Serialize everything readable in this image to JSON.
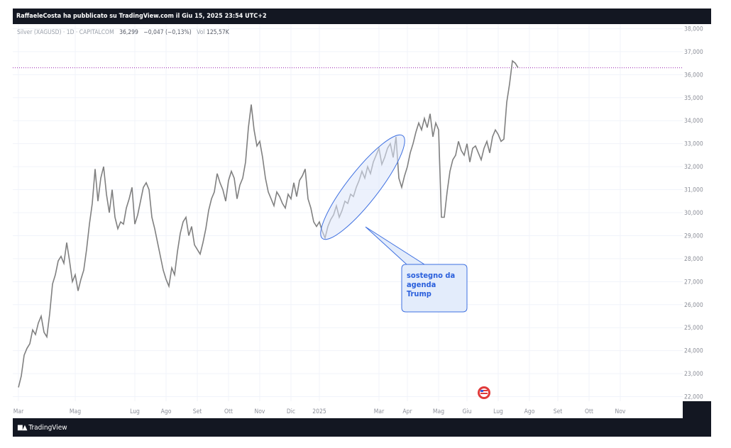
{
  "header": {
    "publish_line": "RaffaeleCosta ha pubblicato su TradingView.com il Giu 15, 2025 23:54 UTC+2"
  },
  "footer": {
    "brand": "TradingView"
  },
  "legend": {
    "symbol": "Silver (XAGUSD) · 1D · CAPITALCOM",
    "close": "36,299",
    "change": "−0,047 (−0,13%)",
    "volume_label": "Vol",
    "volume": "125,57K"
  },
  "annotation": {
    "text_lines": [
      "sostegno da",
      "agenda",
      "Trump"
    ]
  },
  "colors": {
    "line": "#808080",
    "price_line": "#9c27b0",
    "callout_fill": "#e3ecfb",
    "callout_border": "#3d6fe0",
    "callout_text": "#2a5fdc"
  },
  "chart_data": {
    "type": "line",
    "title": "",
    "xlabel": "",
    "ylabel": "",
    "ylim": [
      21.8,
      38.2
    ],
    "current_price": 36.299,
    "y_ticks": [
      {
        "v": 22,
        "label": "22,000"
      },
      {
        "v": 23,
        "label": "23,000"
      },
      {
        "v": 24,
        "label": "24,000"
      },
      {
        "v": 25,
        "label": "25,000"
      },
      {
        "v": 26,
        "label": "26,000"
      },
      {
        "v": 27,
        "label": "27,000"
      },
      {
        "v": 28,
        "label": "28,000"
      },
      {
        "v": 29,
        "label": "29,000"
      },
      {
        "v": 30,
        "label": "30,000"
      },
      {
        "v": 31,
        "label": "31,000"
      },
      {
        "v": 32,
        "label": "32,000"
      },
      {
        "v": 33,
        "label": "33,000"
      },
      {
        "v": 34,
        "label": "34,000"
      },
      {
        "v": 35,
        "label": "35,000"
      },
      {
        "v": 36,
        "label": "36,000"
      },
      {
        "v": 37,
        "label": "37,000"
      },
      {
        "v": 38,
        "label": "38,000"
      }
    ],
    "x_ticks": [
      {
        "t": 0,
        "label": "Mar"
      },
      {
        "t": 20,
        "label": "Mag"
      },
      {
        "t": 41,
        "label": "Lug"
      },
      {
        "t": 52,
        "label": "Ago"
      },
      {
        "t": 63,
        "label": "Set"
      },
      {
        "t": 74,
        "label": "Ott"
      },
      {
        "t": 85,
        "label": "Nov"
      },
      {
        "t": 96,
        "label": "Dic"
      },
      {
        "t": 106,
        "label": "2025"
      },
      {
        "t": 127,
        "label": "Mar"
      },
      {
        "t": 137,
        "label": "Apr"
      },
      {
        "t": 148,
        "label": "Mag"
      },
      {
        "t": 158,
        "label": "Giu"
      },
      {
        "t": 169,
        "label": "Lug"
      },
      {
        "t": 180,
        "label": "Ago"
      },
      {
        "t": 190,
        "label": "Set"
      },
      {
        "t": 201,
        "label": "Ott"
      },
      {
        "t": 212,
        "label": "Nov"
      }
    ],
    "x_range": [
      0,
      232
    ],
    "series": [
      {
        "values": [
          [
            0,
            22.4
          ],
          [
            1,
            22.9
          ],
          [
            2,
            23.8
          ],
          [
            3,
            24.1
          ],
          [
            4,
            24.3
          ],
          [
            5,
            24.9
          ],
          [
            6,
            24.7
          ],
          [
            7,
            25.2
          ],
          [
            8,
            25.5
          ],
          [
            9,
            24.8
          ],
          [
            10,
            24.6
          ],
          [
            11,
            25.6
          ],
          [
            12,
            26.9
          ],
          [
            13,
            27.3
          ],
          [
            14,
            27.9
          ],
          [
            15,
            28.1
          ],
          [
            16,
            27.8
          ],
          [
            17,
            28.7
          ],
          [
            18,
            27.9
          ],
          [
            19,
            27.0
          ],
          [
            20,
            27.3
          ],
          [
            21,
            26.6
          ],
          [
            22,
            27.1
          ],
          [
            23,
            27.5
          ],
          [
            24,
            28.4
          ],
          [
            25,
            29.5
          ],
          [
            26,
            30.4
          ],
          [
            27,
            31.9
          ],
          [
            28,
            30.5
          ],
          [
            29,
            31.5
          ],
          [
            30,
            32.0
          ],
          [
            31,
            30.8
          ],
          [
            32,
            30.0
          ],
          [
            33,
            31.0
          ],
          [
            34,
            29.8
          ],
          [
            35,
            29.3
          ],
          [
            36,
            29.6
          ],
          [
            37,
            29.5
          ],
          [
            38,
            30.2
          ],
          [
            39,
            30.6
          ],
          [
            40,
            31.1
          ],
          [
            41,
            29.5
          ],
          [
            42,
            29.9
          ],
          [
            43,
            30.5
          ],
          [
            44,
            31.1
          ],
          [
            45,
            31.3
          ],
          [
            46,
            31.0
          ],
          [
            47,
            29.8
          ],
          [
            48,
            29.3
          ],
          [
            49,
            28.7
          ],
          [
            50,
            28.1
          ],
          [
            51,
            27.5
          ],
          [
            52,
            27.1
          ],
          [
            53,
            26.8
          ],
          [
            54,
            27.6
          ],
          [
            55,
            27.3
          ],
          [
            56,
            28.3
          ],
          [
            57,
            29.1
          ],
          [
            58,
            29.6
          ],
          [
            59,
            29.8
          ],
          [
            60,
            29.0
          ],
          [
            61,
            29.4
          ],
          [
            62,
            28.6
          ],
          [
            63,
            28.4
          ],
          [
            64,
            28.2
          ],
          [
            65,
            28.7
          ],
          [
            66,
            29.3
          ],
          [
            67,
            30.1
          ],
          [
            68,
            30.6
          ],
          [
            69,
            30.9
          ],
          [
            70,
            31.7
          ],
          [
            71,
            31.3
          ],
          [
            72,
            31.0
          ],
          [
            73,
            30.5
          ],
          [
            74,
            31.4
          ],
          [
            75,
            31.8
          ],
          [
            76,
            31.5
          ],
          [
            77,
            30.6
          ],
          [
            78,
            31.2
          ],
          [
            79,
            31.5
          ],
          [
            80,
            32.2
          ],
          [
            81,
            33.7
          ],
          [
            82,
            34.7
          ],
          [
            83,
            33.6
          ],
          [
            84,
            32.9
          ],
          [
            85,
            33.1
          ],
          [
            86,
            32.4
          ],
          [
            87,
            31.5
          ],
          [
            88,
            30.9
          ],
          [
            89,
            30.6
          ],
          [
            90,
            30.3
          ],
          [
            91,
            30.9
          ],
          [
            92,
            30.7
          ],
          [
            93,
            30.4
          ],
          [
            94,
            30.2
          ],
          [
            95,
            30.8
          ],
          [
            96,
            30.6
          ],
          [
            97,
            31.3
          ],
          [
            98,
            30.7
          ],
          [
            99,
            31.4
          ],
          [
            100,
            31.6
          ],
          [
            101,
            31.9
          ],
          [
            102,
            30.6
          ],
          [
            103,
            30.2
          ],
          [
            104,
            29.6
          ],
          [
            105,
            29.4
          ],
          [
            106,
            29.6
          ],
          [
            107,
            29.2
          ],
          [
            108,
            28.9
          ],
          [
            109,
            29.4
          ],
          [
            110,
            29.7
          ],
          [
            111,
            29.9
          ],
          [
            112,
            30.3
          ],
          [
            113,
            29.8
          ],
          [
            114,
            30.1
          ],
          [
            115,
            30.5
          ],
          [
            116,
            30.4
          ],
          [
            117,
            30.8
          ],
          [
            118,
            30.7
          ],
          [
            119,
            31.1
          ],
          [
            120,
            31.4
          ],
          [
            121,
            31.8
          ],
          [
            122,
            31.5
          ],
          [
            123,
            32.0
          ],
          [
            124,
            31.7
          ],
          [
            125,
            32.2
          ],
          [
            126,
            32.5
          ],
          [
            127,
            32.8
          ],
          [
            128,
            32.1
          ],
          [
            129,
            32.4
          ],
          [
            130,
            32.8
          ],
          [
            131,
            33.0
          ],
          [
            132,
            32.4
          ],
          [
            133,
            33.3
          ],
          [
            134,
            31.5
          ],
          [
            135,
            31.1
          ],
          [
            136,
            31.6
          ],
          [
            137,
            32.0
          ],
          [
            138,
            32.6
          ],
          [
            139,
            33.0
          ],
          [
            140,
            33.5
          ],
          [
            141,
            33.9
          ],
          [
            142,
            33.6
          ],
          [
            143,
            34.1
          ],
          [
            144,
            33.7
          ],
          [
            145,
            34.3
          ],
          [
            146,
            33.3
          ],
          [
            147,
            33.9
          ],
          [
            148,
            33.6
          ],
          [
            149,
            29.8
          ],
          [
            150,
            29.8
          ],
          [
            151,
            30.9
          ],
          [
            152,
            31.8
          ],
          [
            153,
            32.3
          ],
          [
            154,
            32.5
          ],
          [
            155,
            33.1
          ],
          [
            156,
            32.7
          ],
          [
            157,
            32.5
          ],
          [
            158,
            33.0
          ],
          [
            159,
            32.2
          ],
          [
            160,
            32.8
          ],
          [
            161,
            32.9
          ],
          [
            162,
            32.6
          ],
          [
            163,
            32.3
          ],
          [
            164,
            32.8
          ],
          [
            165,
            33.1
          ],
          [
            166,
            32.6
          ],
          [
            167,
            33.3
          ],
          [
            168,
            33.6
          ],
          [
            169,
            33.4
          ],
          [
            170,
            33.1
          ],
          [
            171,
            33.2
          ],
          [
            172,
            34.8
          ],
          [
            173,
            35.6
          ],
          [
            174,
            36.6
          ],
          [
            175,
            36.5
          ],
          [
            176,
            36.3
          ]
        ]
      }
    ],
    "grid": true,
    "legend_position": "top-left"
  }
}
